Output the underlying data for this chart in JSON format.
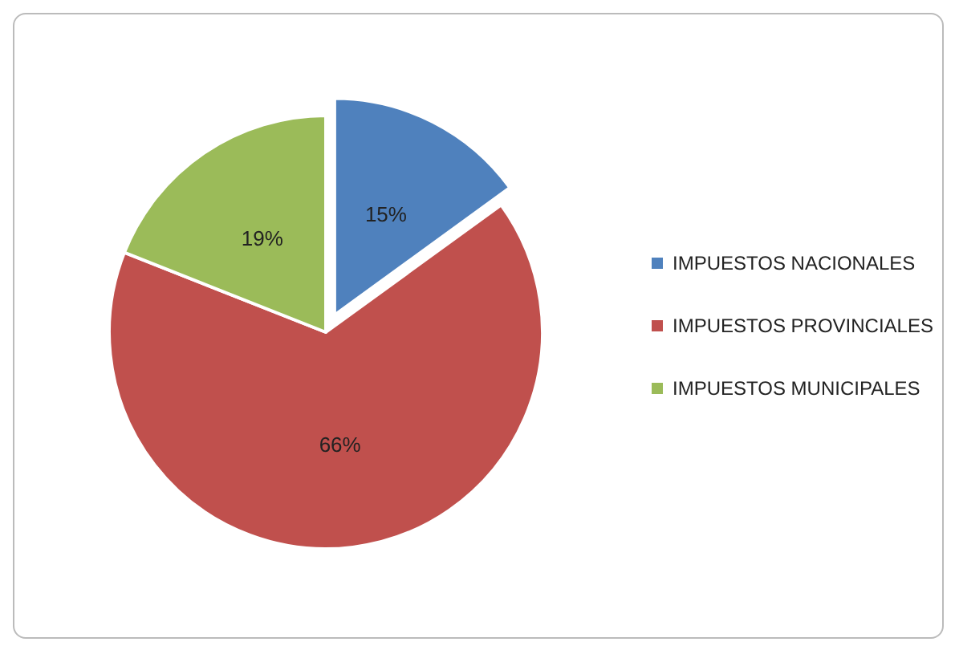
{
  "chart_data": {
    "type": "pie",
    "categories": [
      "IMPUESTOS NACIONALES",
      "IMPUESTOS PROVINCIALES",
      "IMPUESTOS MUNICIPALES"
    ],
    "values": [
      15,
      66,
      19
    ],
    "colors": [
      "#4f81bd",
      "#c0504d",
      "#9bbb59"
    ],
    "value_labels": [
      "15%",
      "66%",
      "19%"
    ],
    "legend": "right"
  }
}
